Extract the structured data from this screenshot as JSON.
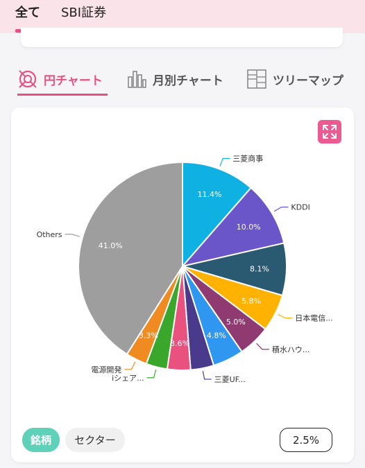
{
  "top_tabs": [
    {
      "label": "全て",
      "active": true
    },
    {
      "label": "SBI証券",
      "active": false
    }
  ],
  "view_tabs": [
    {
      "label": "円チャート",
      "icon": "pie-chart-icon",
      "active": true
    },
    {
      "label": "月別チャート",
      "icon": "bar-chart-icon",
      "active": false
    },
    {
      "label": "ツリーマップ",
      "icon": "treemap-icon",
      "active": false
    }
  ],
  "chart_data": {
    "type": "pie",
    "slices": [
      {
        "label": "三菱商事",
        "value": 11.4,
        "value_label": "11.4%",
        "color": "#0fb1e3"
      },
      {
        "label": "KDDI",
        "value": 10.0,
        "value_label": "10.0%",
        "color": "#6a55c9"
      },
      {
        "label": "",
        "value": 8.1,
        "value_label": "8.1%",
        "color": "#2a5a72"
      },
      {
        "label": "日本電信...",
        "value": 5.8,
        "value_label": "5.8%",
        "color": "#ffb300"
      },
      {
        "label": "積水ハウ...",
        "value": 5.0,
        "value_label": "5.0%",
        "color": "#8f3a70"
      },
      {
        "label": "",
        "value": 4.8,
        "value_label": "4.8%",
        "color": "#2f97f0"
      },
      {
        "label": "三菱UF...",
        "value": 3.6,
        "value_label": "",
        "color": "#4a3a8c"
      },
      {
        "label": "",
        "value": 3.6,
        "value_label": "3.6%",
        "color": "#e9527f"
      },
      {
        "label": "iシェア...",
        "value": 3.3,
        "value_label": "",
        "color": "#3aa62c"
      },
      {
        "label": "電源開発",
        "value": 3.3,
        "value_label": "3.3%",
        "color": "#ef8b20"
      },
      {
        "label": "Others",
        "value": 41.0,
        "value_label": "41.0%",
        "color": "#9e9e9e"
      }
    ]
  },
  "footer": {
    "brand_pill": "銘柄",
    "sector_pill": "セクター",
    "threshold": "2.5%"
  },
  "colors": {
    "accent": "#e8507f",
    "brand_pill": "#5fd1b9",
    "expand_button": "#ec5a92"
  }
}
